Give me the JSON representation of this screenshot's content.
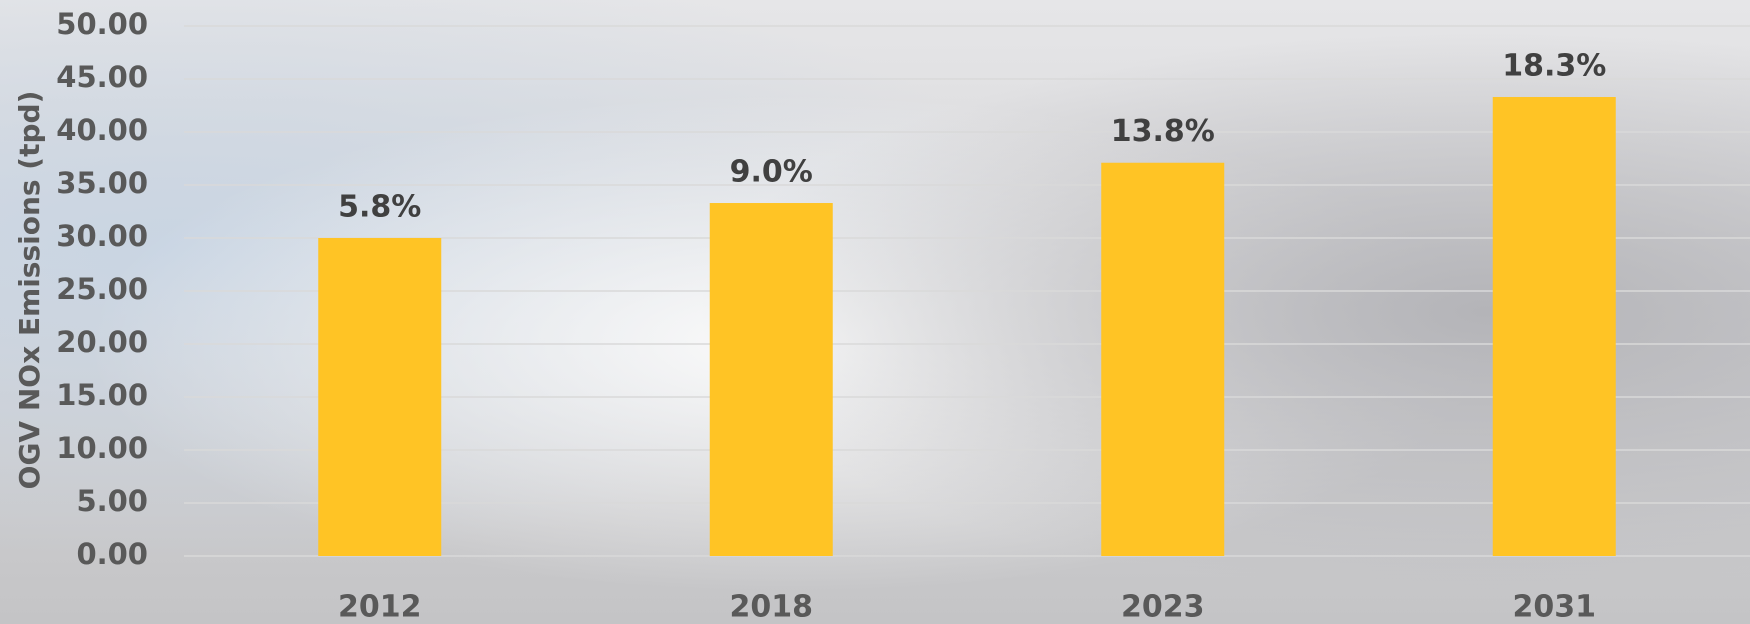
{
  "chart_data": {
    "type": "bar",
    "y_label": "OGV NOx Emissions (tpd)",
    "categories": [
      "2012",
      "2018",
      "2023",
      "2031"
    ],
    "values": [
      30.0,
      33.3,
      37.1,
      43.3
    ],
    "bar_labels": [
      "5.8%",
      "9.0%",
      "13.8%",
      "18.3%"
    ],
    "color": "#ffc425",
    "ylim": [
      0,
      50
    ],
    "yticks": [
      {
        "value": 0,
        "label": "0.00"
      },
      {
        "value": 5,
        "label": "5.00"
      },
      {
        "value": 10,
        "label": "10.00"
      },
      {
        "value": 15,
        "label": "15.00"
      },
      {
        "value": 20,
        "label": "20.00"
      },
      {
        "value": 25,
        "label": "25.00"
      },
      {
        "value": 30,
        "label": "30.00"
      },
      {
        "value": 35,
        "label": "35.00"
      },
      {
        "value": 40,
        "label": "40.00"
      },
      {
        "value": 45,
        "label": "45.00"
      },
      {
        "value": 50,
        "label": "50.00"
      }
    ],
    "grid": true
  }
}
